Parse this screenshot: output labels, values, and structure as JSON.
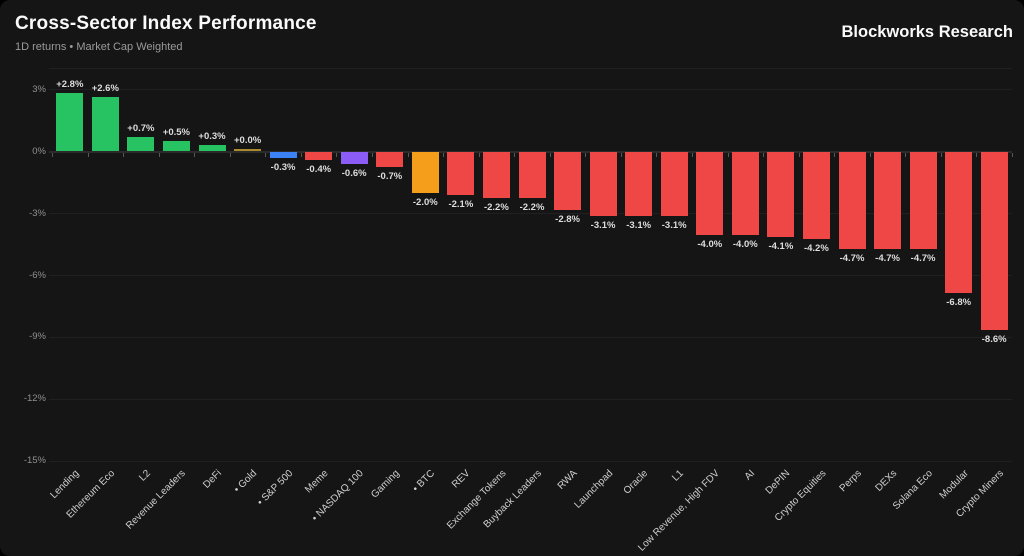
{
  "header": {
    "title": "Cross-Sector Index Performance",
    "subtitle": "1D returns • Market Cap Weighted",
    "brand": "Blockworks Research"
  },
  "chart_data": {
    "type": "bar",
    "title": "Cross-Sector Index Performance",
    "subtitle": "1D returns • Market Cap Weighted",
    "ylim": [
      -15,
      4
    ],
    "grid": true,
    "legend": "none",
    "y_ticks": [
      {
        "value": 3,
        "label": "3%"
      },
      {
        "value": 0,
        "label": "0%"
      },
      {
        "value": -3,
        "label": "-3%"
      },
      {
        "value": -6,
        "label": "-6%"
      },
      {
        "value": -9,
        "label": "-9%"
      },
      {
        "value": -12,
        "label": "-12%"
      },
      {
        "value": -15,
        "label": "-15%"
      }
    ],
    "categories": [
      "Lending",
      "Ethereum Eco",
      "L2",
      "Revenue Leaders",
      "DeFi",
      "• Gold",
      "• S&P 500",
      "Meme",
      "• NASDAQ 100",
      "Gaming",
      "• BTC",
      "REV",
      "Exchange Tokens",
      "Buyback Leaders",
      "RWA",
      "Launchpad",
      "Oracle",
      "L1",
      "Low Revenue, High FDV",
      "AI",
      "DePIN",
      "Crypto Equities",
      "Perps",
      "DEXs",
      "Solana Eco",
      "Modular",
      "Crypto Miners"
    ],
    "values": [
      2.8,
      2.6,
      0.7,
      0.5,
      0.3,
      0.0,
      -0.3,
      -0.4,
      -0.6,
      -0.7,
      -2.0,
      -2.1,
      -2.2,
      -2.2,
      -2.8,
      -3.1,
      -3.1,
      -3.1,
      -4.0,
      -4.0,
      -4.1,
      -4.2,
      -4.7,
      -4.7,
      -4.7,
      -6.8,
      -8.6
    ],
    "value_labels": [
      "+2.8%",
      "+2.6%",
      "+0.7%",
      "+0.5%",
      "+0.3%",
      "+0.0%",
      "-0.3%",
      "-0.4%",
      "-0.6%",
      "-0.7%",
      "-2.0%",
      "-2.1%",
      "-2.2%",
      "-2.2%",
      "-2.8%",
      "-3.1%",
      "-3.1%",
      "-3.1%",
      "-4.0%",
      "-4.0%",
      "-4.1%",
      "-4.2%",
      "-4.7%",
      "-4.7%",
      "-4.7%",
      "-6.8%",
      "-8.6%"
    ],
    "bar_colors": [
      "#27c262",
      "#27c262",
      "#27c262",
      "#27c262",
      "#27c262",
      "#ab8b2d",
      "#3b82f6",
      "#ef4746",
      "#8b5cf6",
      "#ef4746",
      "#f59e1b",
      "#ef4746",
      "#ef4746",
      "#ef4746",
      "#ef4746",
      "#ef4746",
      "#ef4746",
      "#ef4746",
      "#ef4746",
      "#ef4746",
      "#ef4746",
      "#ef4746",
      "#ef4746",
      "#ef4746",
      "#ef4746",
      "#ef4746",
      "#ef4746"
    ],
    "palette": {
      "positive_green": "#27c262",
      "negative_red": "#ef4746",
      "gold": "#ab8b2d",
      "sp500_blue": "#3b82f6",
      "nasdaq_purple": "#8b5cf6",
      "btc_orange": "#f59e1b"
    }
  }
}
